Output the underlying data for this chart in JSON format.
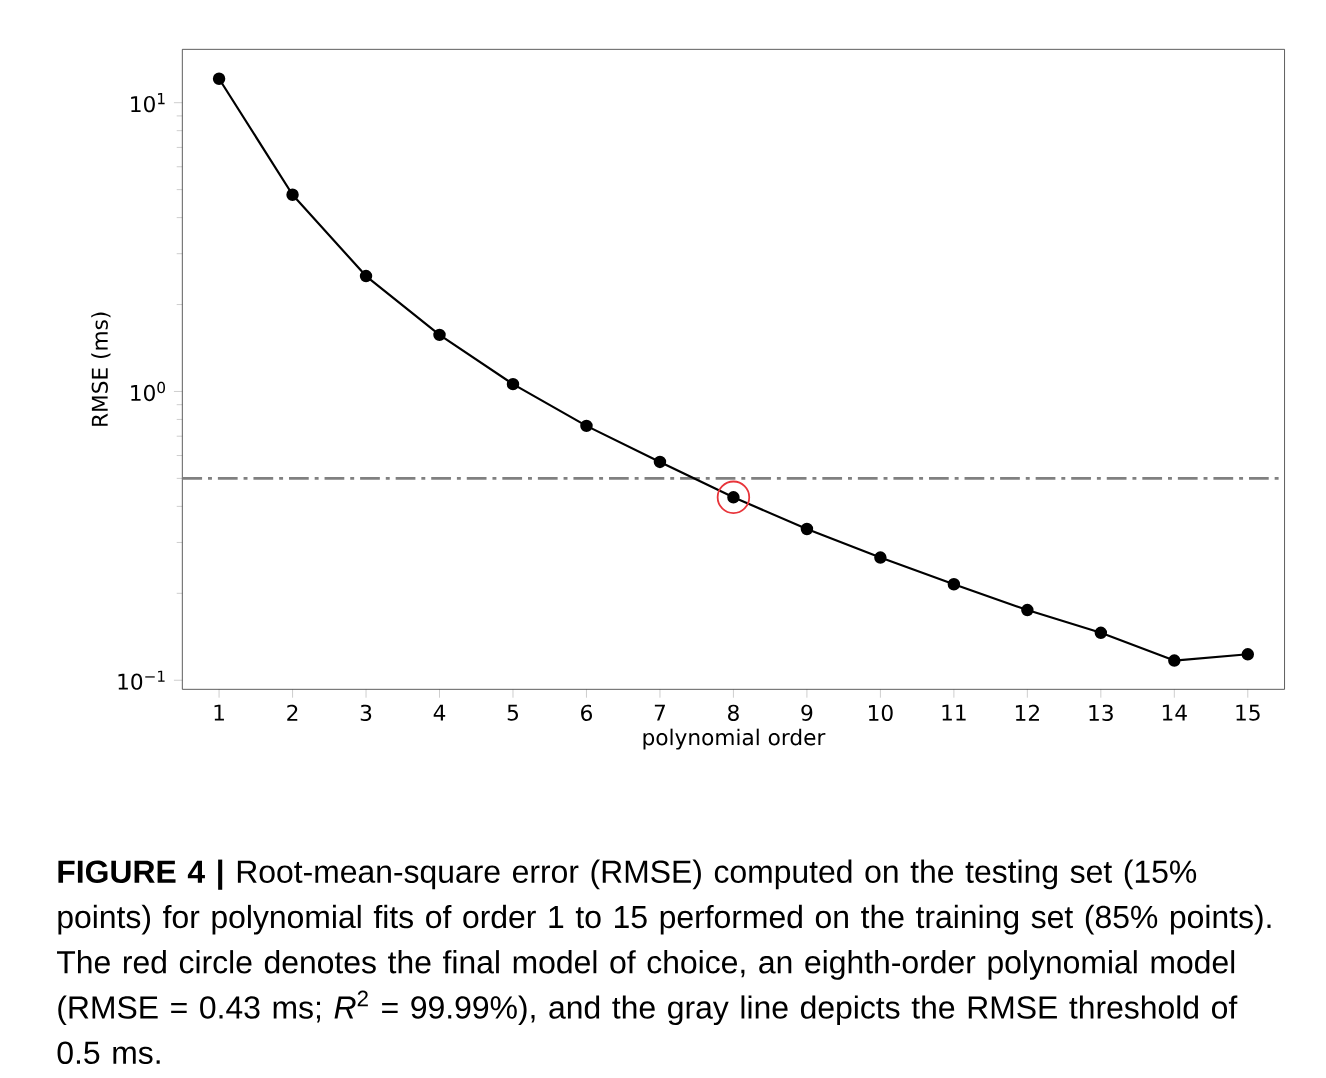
{
  "chart_data": {
    "type": "line",
    "xlabel": "polynomial order",
    "ylabel": "RMSE (ms)",
    "x": [
      1,
      2,
      3,
      4,
      5,
      6,
      7,
      8,
      9,
      10,
      11,
      12,
      13,
      14,
      15
    ],
    "series": [
      {
        "color": "#000000",
        "values": [
          12.1,
          4.8,
          2.51,
          1.57,
          1.06,
          0.76,
          0.57,
          0.43,
          0.334,
          0.266,
          0.215,
          0.175,
          0.146,
          0.117,
          0.123
        ]
      },
      {
        "type": "scatter",
        "color": "#e8343a",
        "x": [
          8
        ],
        "values": [
          0.43
        ]
      }
    ],
    "log": "y",
    "marker": "circle",
    "line_style": "solid",
    "xlim": [
      0.5,
      15.5
    ],
    "ylim": [
      0.093,
      15.3
    ],
    "xticks": [
      1,
      2,
      3,
      4,
      5,
      6,
      7,
      8,
      9,
      10,
      11,
      12,
      13,
      14,
      15
    ],
    "yticks": [
      {
        "value": 0.1,
        "label": "10$^{−1}$"
      },
      {
        "value": 1,
        "label": "10$^{0}$"
      },
      {
        "value": 10,
        "label": "10$^{1}$"
      }
    ],
    "ref_lines": [
      {
        "axis": "y",
        "value": 0.5,
        "color": "#808080",
        "line_style": "dashdot"
      }
    ],
    "annotations": [
      "**FIGURE 4 |** Root-mean-square error (RMSE) computed on the testing set (15% points) for polynomial fits of order 1 to 15 performed on the training set (85% points). The red circle denotes the final model of choice, an eighth-order polynomial model (RMSE = 0.43 ms; *R*$^{2}$ = 99.99%), and the gray line depicts the RMSE threshold of 0.5 ms."
    ]
  }
}
